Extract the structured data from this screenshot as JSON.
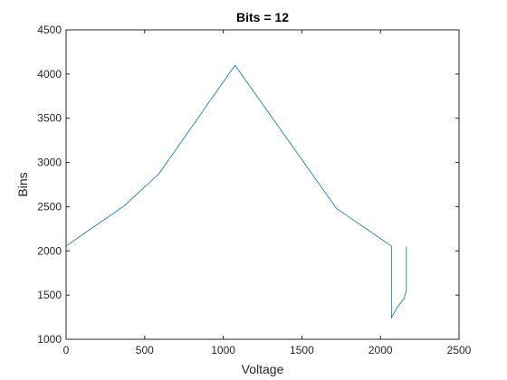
{
  "chart_data": {
    "type": "line",
    "title": "Bits = 12",
    "xlabel": "Voltage",
    "ylabel": "Bins",
    "xlim": [
      0,
      2500
    ],
    "ylim": [
      1000,
      4500
    ],
    "xticks": [
      0,
      500,
      1000,
      1500,
      2000,
      2500
    ],
    "yticks": [
      1000,
      1500,
      2000,
      2500,
      3000,
      3500,
      4000,
      4500
    ],
    "xtick_labels": [
      "0",
      "500",
      "1000",
      "1500",
      "2000",
      "2500"
    ],
    "ytick_labels": [
      "1000",
      "1500",
      "2000",
      "2500",
      "3000",
      "3500",
      "4000",
      "4500"
    ],
    "grid": false,
    "line_color": "#0072BD",
    "series": [
      {
        "x": [
          0,
          370,
          590,
          1075,
          1720,
          2070,
          2070,
          2110,
          2150,
          2165,
          2165
        ],
        "y": [
          2055,
          2510,
          2870,
          4100,
          2480,
          2055,
          1245,
          1370,
          1460,
          1550,
          2050
        ]
      }
    ]
  }
}
